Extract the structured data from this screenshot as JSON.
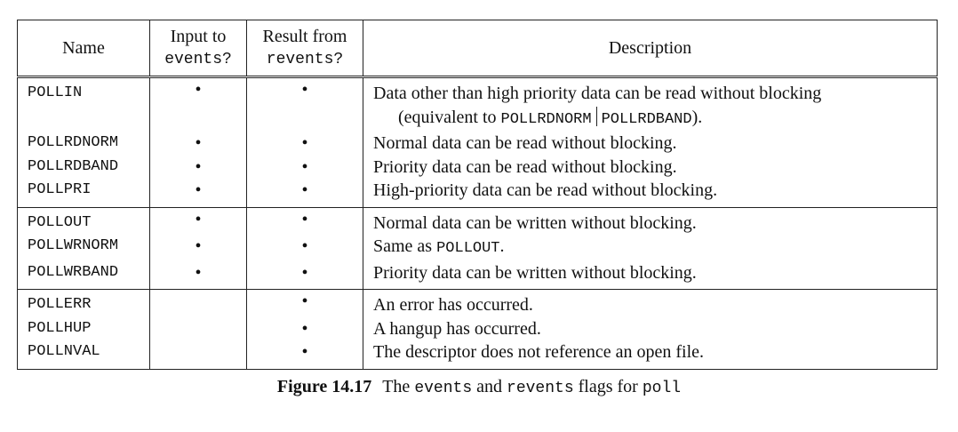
{
  "table": {
    "headers": {
      "name": "Name",
      "input_line1": "Input to",
      "input_line2": "events?",
      "result_line1": "Result from",
      "result_line2": "revents?",
      "description": "Description"
    },
    "groups": [
      {
        "rows": [
          {
            "name": "POLLIN",
            "input": "•",
            "result": "•",
            "desc_line1": "Data other than high priority data can be read without blocking",
            "desc_cont_prefix": "(equivalent to ",
            "desc_cont_code1": "POLLRDNORM",
            "desc_cont_code2": "POLLRDBAND",
            "desc_cont_suffix": ")."
          },
          {
            "name": "POLLRDNORM",
            "input": "•",
            "result": "•",
            "desc": "Normal data can be read without blocking."
          },
          {
            "name": "POLLRDBAND",
            "input": "•",
            "result": "•",
            "desc": "Priority data can be read without blocking."
          },
          {
            "name": "POLLPRI",
            "input": "•",
            "result": "•",
            "desc": "High-priority data can be read without blocking."
          }
        ]
      },
      {
        "rows": [
          {
            "name": "POLLOUT",
            "input": "•",
            "result": "•",
            "desc": "Normal data can be written without blocking."
          },
          {
            "name": "POLLWRNORM",
            "input": "•",
            "result": "•",
            "desc_prefix": "Same as ",
            "desc_code": "POLLOUT",
            "desc_suffix": "."
          },
          {
            "name": "POLLWRBAND",
            "input": "•",
            "result": "•",
            "desc": "Priority data can be written without blocking."
          }
        ]
      },
      {
        "rows": [
          {
            "name": "POLLERR",
            "input": "",
            "result": "•",
            "desc": "An error has occurred."
          },
          {
            "name": "POLLHUP",
            "input": "",
            "result": "•",
            "desc": "A hangup has occurred."
          },
          {
            "name": "POLLNVAL",
            "input": "",
            "result": "•",
            "desc": "The descriptor does not reference an open file."
          }
        ]
      }
    ]
  },
  "caption": {
    "label": "Figure 14.17",
    "text_the": "The ",
    "code_events": "events",
    "text_and": " and ",
    "code_revents": "revents",
    "text_flags": " flags for ",
    "code_poll": "poll"
  }
}
